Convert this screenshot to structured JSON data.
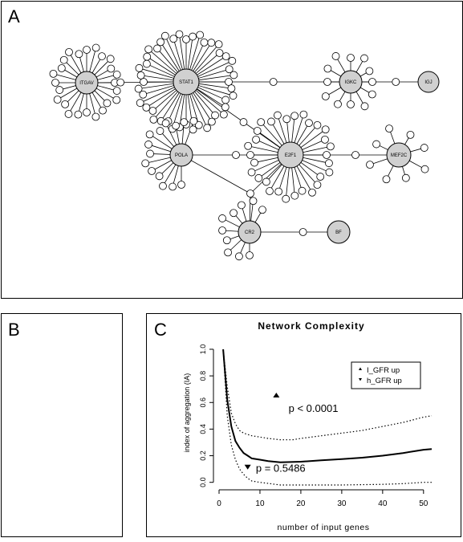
{
  "panels": {
    "a": {
      "letter": "A"
    },
    "b": {
      "letter": "B"
    },
    "c": {
      "letter": "C"
    }
  },
  "network": {
    "hubs": [
      {
        "id": "itgav",
        "label": "ITGAV"
      },
      {
        "id": "stat1",
        "label": "STAT1"
      },
      {
        "id": "igkc",
        "label": "IGKC"
      },
      {
        "id": "igj",
        "label": "IGJ"
      },
      {
        "id": "pola",
        "label": "POLA"
      },
      {
        "id": "e2f1",
        "label": "E2F1"
      },
      {
        "id": "mef2c",
        "label": "MEF2C"
      },
      {
        "id": "cr2",
        "label": "CR2"
      },
      {
        "id": "bf",
        "label": "BF"
      }
    ]
  },
  "chart_data": {
    "type": "line",
    "title": "Network Complexity",
    "xlabel": "number of input genes",
    "ylabel": "index of aggregation (IA)",
    "xlim": [
      0,
      52
    ],
    "ylim": [
      -0.02,
      1.03
    ],
    "xticks": [
      "0",
      "10",
      "20",
      "30",
      "40",
      "50"
    ],
    "yticks": [
      "0.0",
      "0.2",
      "0.4",
      "0.6",
      "0.8",
      "1.0"
    ],
    "legend": {
      "position": "top-right",
      "entries": [
        {
          "marker": "triangle-up",
          "label": "I_GFR up"
        },
        {
          "marker": "triangle-down",
          "label": "h_GFR up"
        }
      ]
    },
    "series": [
      {
        "style": "solid",
        "x": [
          1,
          2,
          3,
          4,
          5,
          6,
          7,
          8,
          10,
          12,
          15,
          20,
          25,
          30,
          35,
          40,
          45,
          50,
          52
        ],
        "y": [
          1.0,
          0.62,
          0.42,
          0.31,
          0.26,
          0.22,
          0.2,
          0.18,
          0.17,
          0.16,
          0.15,
          0.155,
          0.165,
          0.175,
          0.185,
          0.2,
          0.22,
          0.245,
          0.25
        ]
      },
      {
        "style": "dotted",
        "x": [
          1,
          2,
          3,
          4,
          5,
          6,
          8,
          10,
          12,
          15,
          18,
          20,
          25,
          30,
          35,
          40,
          45,
          50,
          52
        ],
        "y": [
          1.0,
          0.72,
          0.52,
          0.44,
          0.39,
          0.37,
          0.35,
          0.34,
          0.33,
          0.32,
          0.32,
          0.33,
          0.35,
          0.37,
          0.39,
          0.42,
          0.45,
          0.49,
          0.5
        ]
      },
      {
        "style": "dotted",
        "x": [
          1,
          2,
          3,
          4,
          5,
          6,
          7,
          8,
          10,
          15,
          20,
          30,
          40,
          45,
          50,
          52
        ],
        "y": [
          1.0,
          0.5,
          0.28,
          0.17,
          0.1,
          0.06,
          0.03,
          0.01,
          0.0,
          -0.02,
          -0.02,
          -0.02,
          -0.015,
          -0.01,
          0.0,
          0.0
        ]
      }
    ],
    "points": [
      {
        "marker": "triangle-up",
        "x": 14,
        "y": 0.65
      },
      {
        "marker": "triangle-down",
        "x": 7,
        "y": 0.12
      }
    ],
    "annotations": [
      {
        "text": "p < 0.0001",
        "x": 17,
        "y": 0.53
      },
      {
        "text": "p = 0.5486",
        "x": 9,
        "y": 0.08
      }
    ]
  }
}
